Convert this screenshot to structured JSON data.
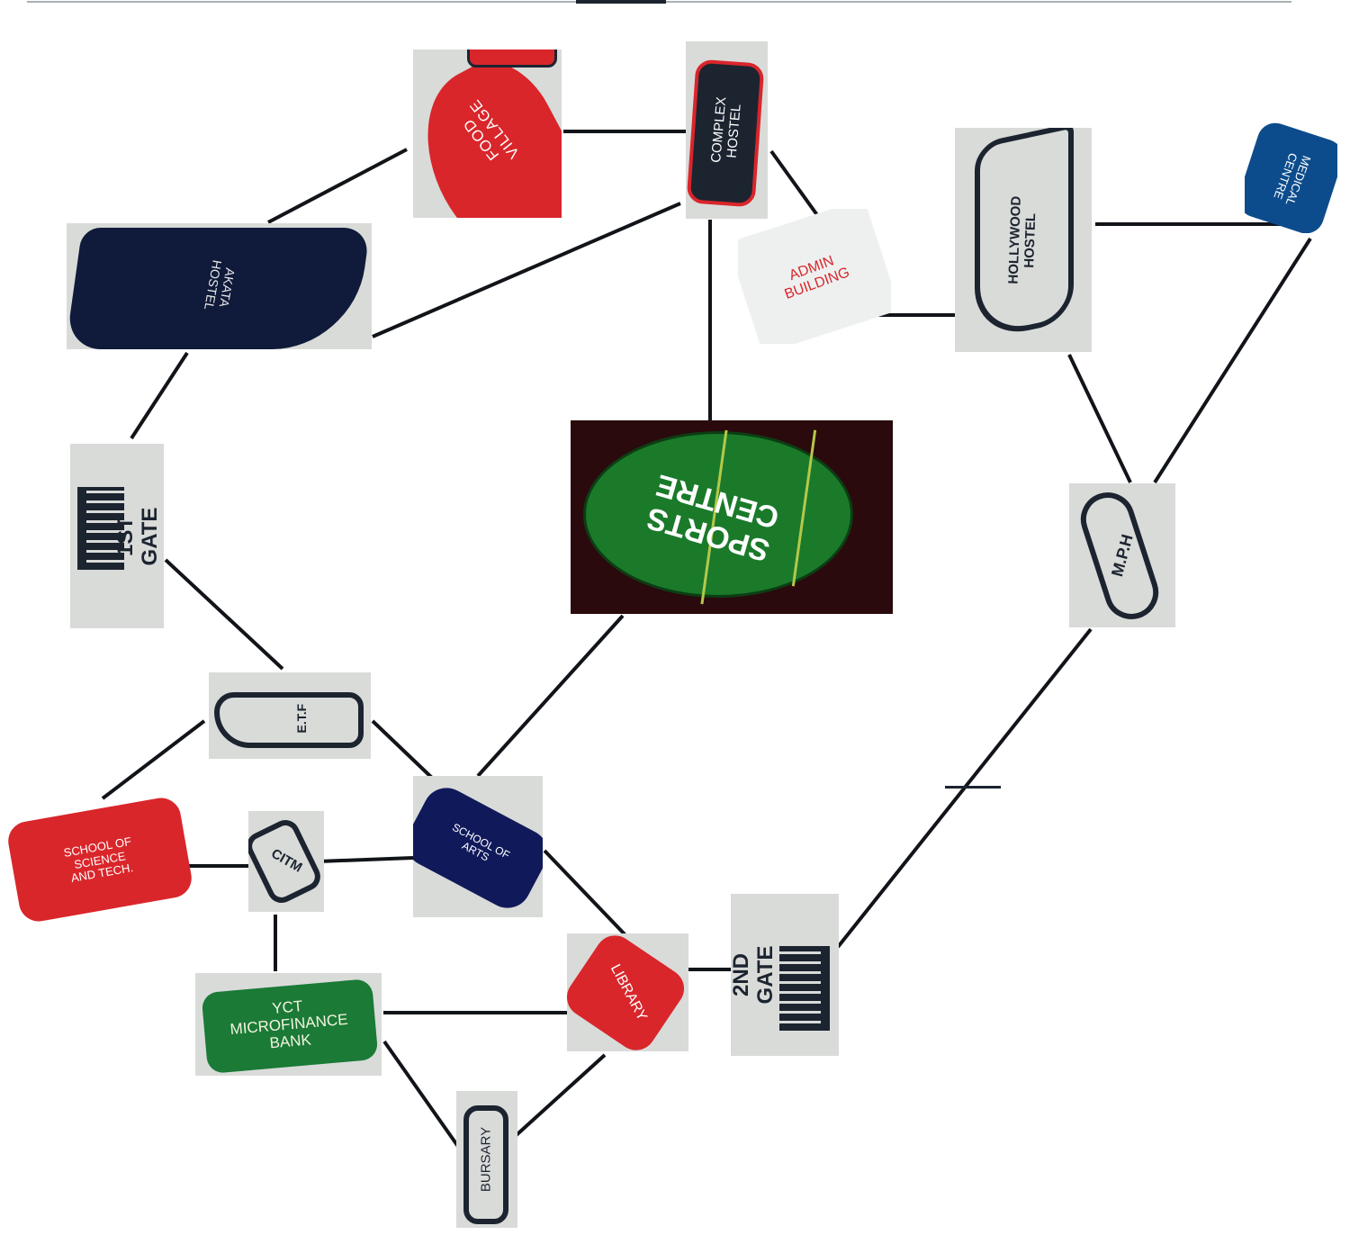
{
  "diagram": {
    "nodes": [
      {
        "id": "food-village",
        "label": "FOOD VILLAGE"
      },
      {
        "id": "complex-hostel",
        "label": "COMPLEX\nHOSTEL"
      },
      {
        "id": "akata-hostel",
        "label": "AKATA\nHOSTEL"
      },
      {
        "id": "admin-building",
        "label": "ADMIN\nBUILDING"
      },
      {
        "id": "hollywood-hostel",
        "label": "HOLLYWOOD\nHOSTEL"
      },
      {
        "id": "medical-centre",
        "label": "MEDICAL\nCENTRE"
      },
      {
        "id": "first-gate",
        "label": "1ST GATE"
      },
      {
        "id": "sports-centre",
        "label": "SPORTS\nCENTRE"
      },
      {
        "id": "mph",
        "label": "M.P.H"
      },
      {
        "id": "etf",
        "label": "E.T.F"
      },
      {
        "id": "school-science-tech",
        "label": "SCHOOL OF SCIENCE\nAND TECH."
      },
      {
        "id": "citm",
        "label": "CITM"
      },
      {
        "id": "school-arts",
        "label": "SCHOOL OF ARTS"
      },
      {
        "id": "library",
        "label": "LIBRARY"
      },
      {
        "id": "second-gate",
        "label": "2ND GATE"
      },
      {
        "id": "yct-bank",
        "label": "YCT\nMICROFINANCE\nBANK"
      },
      {
        "id": "bursary",
        "label": "BURSARY"
      }
    ],
    "edges": [
      [
        "food-village",
        "complex-hostel"
      ],
      [
        "food-village",
        "akata-hostel"
      ],
      [
        "complex-hostel",
        "akata-hostel"
      ],
      [
        "complex-hostel",
        "admin-building"
      ],
      [
        "complex-hostel",
        "sports-centre"
      ],
      [
        "admin-building",
        "hollywood-hostel"
      ],
      [
        "hollywood-hostel",
        "medical-centre"
      ],
      [
        "hollywood-hostel",
        "mph"
      ],
      [
        "medical-centre",
        "mph"
      ],
      [
        "akata-hostel",
        "first-gate"
      ],
      [
        "first-gate",
        "etf"
      ],
      [
        "etf",
        "school-science-tech"
      ],
      [
        "etf",
        "school-arts"
      ],
      [
        "sports-centre",
        "school-arts"
      ],
      [
        "school-science-tech",
        "citm"
      ],
      [
        "citm",
        "school-arts"
      ],
      [
        "citm",
        "yct-bank"
      ],
      [
        "school-arts",
        "library"
      ],
      [
        "library",
        "second-gate"
      ],
      [
        "second-gate",
        "mph"
      ],
      [
        "yct-bank",
        "library"
      ],
      [
        "yct-bank",
        "bursary"
      ],
      [
        "bursary",
        "library"
      ]
    ],
    "colors": {
      "red": "#d9262b",
      "navy": "#101a3a",
      "blue": "#0d4c8c",
      "green": "#1a7a36",
      "dark": "#1c2430",
      "tile": "#d9dbd9"
    }
  }
}
